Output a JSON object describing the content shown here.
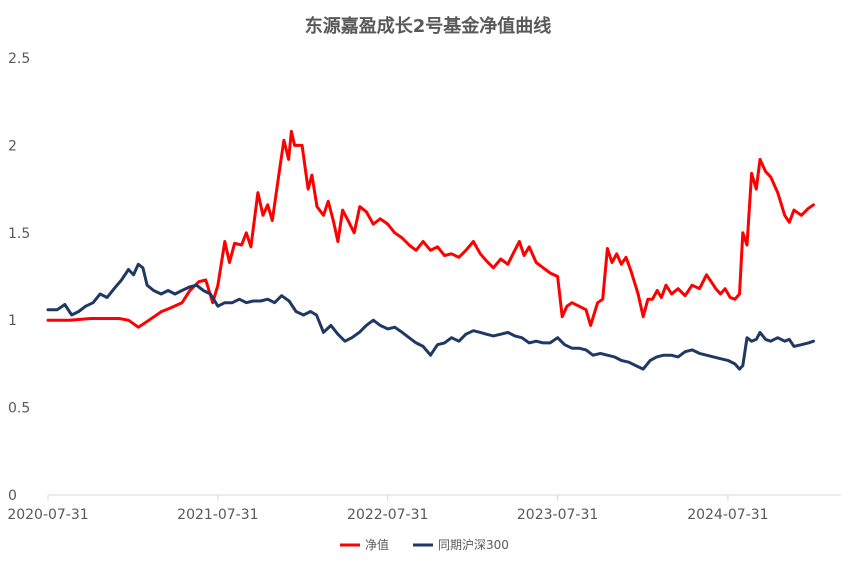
{
  "chart_data": {
    "type": "line",
    "title": "东源嘉盈成长2号基金净值曲线",
    "xlabel": "",
    "ylabel": "",
    "ylim": [
      0,
      2.5
    ],
    "yticks": [
      "0",
      "0.5",
      "1",
      "1.5",
      "2",
      "2.5"
    ],
    "xlim": [
      "2020-07-31",
      "2025-03-31"
    ],
    "xticks": [
      "2020-07-31",
      "2021-07-31",
      "2022-07-31",
      "2023-07-31",
      "2024-07-31"
    ],
    "grid": false,
    "legend_position": "bottom",
    "series": [
      {
        "name": "净值",
        "color": "#ff0000",
        "points": [
          [
            "2020-07-31",
            1.0
          ],
          [
            "2020-09-15",
            1.0
          ],
          [
            "2020-10-31",
            1.01
          ],
          [
            "2020-12-31",
            1.01
          ],
          [
            "2021-01-20",
            1.0
          ],
          [
            "2021-02-10",
            0.96
          ],
          [
            "2021-03-05",
            1.0
          ],
          [
            "2021-04-01",
            1.05
          ],
          [
            "2021-04-20",
            1.07
          ],
          [
            "2021-05-15",
            1.1
          ],
          [
            "2021-06-01",
            1.17
          ],
          [
            "2021-06-20",
            1.22
          ],
          [
            "2021-07-05",
            1.23
          ],
          [
            "2021-07-20",
            1.1
          ],
          [
            "2021-07-31",
            1.2
          ],
          [
            "2021-08-15",
            1.45
          ],
          [
            "2021-08-25",
            1.33
          ],
          [
            "2021-09-05",
            1.44
          ],
          [
            "2021-09-20",
            1.43
          ],
          [
            "2021-09-30",
            1.5
          ],
          [
            "2021-10-10",
            1.42
          ],
          [
            "2021-10-25",
            1.73
          ],
          [
            "2021-11-05",
            1.6
          ],
          [
            "2021-11-15",
            1.66
          ],
          [
            "2021-11-25",
            1.57
          ],
          [
            "2021-12-10",
            1.85
          ],
          [
            "2021-12-20",
            2.03
          ],
          [
            "2021-12-30",
            1.92
          ],
          [
            "2022-01-05",
            2.08
          ],
          [
            "2022-01-12",
            2.0
          ],
          [
            "2022-01-28",
            2.0
          ],
          [
            "2022-02-10",
            1.75
          ],
          [
            "2022-02-18",
            1.83
          ],
          [
            "2022-03-01",
            1.65
          ],
          [
            "2022-03-15",
            1.6
          ],
          [
            "2022-03-25",
            1.68
          ],
          [
            "2022-04-05",
            1.57
          ],
          [
            "2022-04-15",
            1.45
          ],
          [
            "2022-04-25",
            1.63
          ],
          [
            "2022-05-05",
            1.58
          ],
          [
            "2022-05-20",
            1.5
          ],
          [
            "2022-06-01",
            1.65
          ],
          [
            "2022-06-15",
            1.62
          ],
          [
            "2022-06-30",
            1.55
          ],
          [
            "2022-07-15",
            1.58
          ],
          [
            "2022-07-31",
            1.55
          ],
          [
            "2022-08-15",
            1.5
          ],
          [
            "2022-08-31",
            1.47
          ],
          [
            "2022-09-15",
            1.43
          ],
          [
            "2022-09-30",
            1.4
          ],
          [
            "2022-10-15",
            1.45
          ],
          [
            "2022-10-31",
            1.4
          ],
          [
            "2022-11-15",
            1.42
          ],
          [
            "2022-11-30",
            1.37
          ],
          [
            "2022-12-15",
            1.38
          ],
          [
            "2022-12-31",
            1.36
          ],
          [
            "2023-01-15",
            1.4
          ],
          [
            "2023-01-31",
            1.45
          ],
          [
            "2023-02-15",
            1.38
          ],
          [
            "2023-02-28",
            1.34
          ],
          [
            "2023-03-15",
            1.3
          ],
          [
            "2023-03-31",
            1.35
          ],
          [
            "2023-04-15",
            1.32
          ],
          [
            "2023-04-30",
            1.4
          ],
          [
            "2023-05-10",
            1.45
          ],
          [
            "2023-05-20",
            1.37
          ],
          [
            "2023-05-31",
            1.42
          ],
          [
            "2023-06-15",
            1.33
          ],
          [
            "2023-06-30",
            1.3
          ],
          [
            "2023-07-15",
            1.27
          ],
          [
            "2023-07-31",
            1.25
          ],
          [
            "2023-08-10",
            1.02
          ],
          [
            "2023-08-20",
            1.08
          ],
          [
            "2023-08-31",
            1.1
          ],
          [
            "2023-09-15",
            1.08
          ],
          [
            "2023-09-30",
            1.06
          ],
          [
            "2023-10-10",
            0.97
          ],
          [
            "2023-10-25",
            1.1
          ],
          [
            "2023-11-05",
            1.12
          ],
          [
            "2023-11-15",
            1.41
          ],
          [
            "2023-11-25",
            1.33
          ],
          [
            "2023-12-05",
            1.38
          ],
          [
            "2023-12-15",
            1.32
          ],
          [
            "2023-12-25",
            1.36
          ],
          [
            "2024-01-05",
            1.28
          ],
          [
            "2024-01-20",
            1.15
          ],
          [
            "2024-01-31",
            1.02
          ],
          [
            "2024-02-10",
            1.12
          ],
          [
            "2024-02-20",
            1.12
          ],
          [
            "2024-03-01",
            1.17
          ],
          [
            "2024-03-10",
            1.13
          ],
          [
            "2024-03-20",
            1.2
          ],
          [
            "2024-04-01",
            1.15
          ],
          [
            "2024-04-15",
            1.18
          ],
          [
            "2024-04-30",
            1.14
          ],
          [
            "2024-05-15",
            1.2
          ],
          [
            "2024-05-31",
            1.18
          ],
          [
            "2024-06-15",
            1.26
          ],
          [
            "2024-06-25",
            1.22
          ],
          [
            "2024-07-05",
            1.18
          ],
          [
            "2024-07-15",
            1.15
          ],
          [
            "2024-07-25",
            1.18
          ],
          [
            "2024-08-05",
            1.13
          ],
          [
            "2024-08-15",
            1.12
          ],
          [
            "2024-08-25",
            1.15
          ],
          [
            "2024-09-01",
            1.5
          ],
          [
            "2024-09-10",
            1.43
          ],
          [
            "2024-09-20",
            1.84
          ],
          [
            "2024-09-30",
            1.75
          ],
          [
            "2024-10-08",
            1.92
          ],
          [
            "2024-10-20",
            1.85
          ],
          [
            "2024-10-31",
            1.82
          ],
          [
            "2024-11-15",
            1.73
          ],
          [
            "2024-11-30",
            1.6
          ],
          [
            "2024-12-10",
            1.56
          ],
          [
            "2024-12-20",
            1.63
          ],
          [
            "2025-01-05",
            1.6
          ],
          [
            "2025-01-20",
            1.64
          ],
          [
            "2025-01-31",
            1.66
          ]
        ]
      },
      {
        "name": "同期沪深300",
        "color": "#1f3864",
        "points": [
          [
            "2020-07-31",
            1.06
          ],
          [
            "2020-08-20",
            1.06
          ],
          [
            "2020-09-05",
            1.09
          ],
          [
            "2020-09-20",
            1.03
          ],
          [
            "2020-10-05",
            1.05
          ],
          [
            "2020-10-20",
            1.08
          ],
          [
            "2020-11-05",
            1.1
          ],
          [
            "2020-11-20",
            1.15
          ],
          [
            "2020-12-05",
            1.13
          ],
          [
            "2020-12-20",
            1.18
          ],
          [
            "2021-01-05",
            1.23
          ],
          [
            "2021-01-20",
            1.29
          ],
          [
            "2021-01-31",
            1.26
          ],
          [
            "2021-02-10",
            1.32
          ],
          [
            "2021-02-20",
            1.3
          ],
          [
            "2021-03-01",
            1.2
          ],
          [
            "2021-03-15",
            1.17
          ],
          [
            "2021-03-31",
            1.15
          ],
          [
            "2021-04-15",
            1.17
          ],
          [
            "2021-04-30",
            1.15
          ],
          [
            "2021-05-15",
            1.17
          ],
          [
            "2021-05-31",
            1.19
          ],
          [
            "2021-06-15",
            1.2
          ],
          [
            "2021-06-30",
            1.17
          ],
          [
            "2021-07-15",
            1.15
          ],
          [
            "2021-07-31",
            1.08
          ],
          [
            "2021-08-15",
            1.1
          ],
          [
            "2021-08-31",
            1.1
          ],
          [
            "2021-09-15",
            1.12
          ],
          [
            "2021-09-30",
            1.1
          ],
          [
            "2021-10-15",
            1.11
          ],
          [
            "2021-10-31",
            1.11
          ],
          [
            "2021-11-15",
            1.12
          ],
          [
            "2021-11-30",
            1.1
          ],
          [
            "2021-12-15",
            1.14
          ],
          [
            "2021-12-31",
            1.11
          ],
          [
            "2022-01-15",
            1.05
          ],
          [
            "2022-01-31",
            1.03
          ],
          [
            "2022-02-15",
            1.05
          ],
          [
            "2022-02-28",
            1.03
          ],
          [
            "2022-03-15",
            0.93
          ],
          [
            "2022-03-31",
            0.97
          ],
          [
            "2022-04-15",
            0.92
          ],
          [
            "2022-04-30",
            0.88
          ],
          [
            "2022-05-15",
            0.9
          ],
          [
            "2022-05-31",
            0.93
          ],
          [
            "2022-06-15",
            0.97
          ],
          [
            "2022-06-30",
            1.0
          ],
          [
            "2022-07-15",
            0.97
          ],
          [
            "2022-07-31",
            0.95
          ],
          [
            "2022-08-15",
            0.96
          ],
          [
            "2022-08-31",
            0.93
          ],
          [
            "2022-09-15",
            0.9
          ],
          [
            "2022-09-30",
            0.87
          ],
          [
            "2022-10-15",
            0.85
          ],
          [
            "2022-10-31",
            0.8
          ],
          [
            "2022-11-15",
            0.86
          ],
          [
            "2022-11-30",
            0.87
          ],
          [
            "2022-12-15",
            0.9
          ],
          [
            "2022-12-31",
            0.88
          ],
          [
            "2023-01-15",
            0.92
          ],
          [
            "2023-01-31",
            0.94
          ],
          [
            "2023-02-15",
            0.93
          ],
          [
            "2023-02-28",
            0.92
          ],
          [
            "2023-03-15",
            0.91
          ],
          [
            "2023-03-31",
            0.92
          ],
          [
            "2023-04-15",
            0.93
          ],
          [
            "2023-04-30",
            0.91
          ],
          [
            "2023-05-15",
            0.9
          ],
          [
            "2023-05-31",
            0.87
          ],
          [
            "2023-06-15",
            0.88
          ],
          [
            "2023-06-30",
            0.87
          ],
          [
            "2023-07-15",
            0.87
          ],
          [
            "2023-07-31",
            0.9
          ],
          [
            "2023-08-15",
            0.86
          ],
          [
            "2023-08-31",
            0.84
          ],
          [
            "2023-09-15",
            0.84
          ],
          [
            "2023-09-30",
            0.83
          ],
          [
            "2023-10-15",
            0.8
          ],
          [
            "2023-10-31",
            0.81
          ],
          [
            "2023-11-15",
            0.8
          ],
          [
            "2023-11-30",
            0.79
          ],
          [
            "2023-12-15",
            0.77
          ],
          [
            "2023-12-31",
            0.76
          ],
          [
            "2024-01-15",
            0.74
          ],
          [
            "2024-01-31",
            0.72
          ],
          [
            "2024-02-15",
            0.77
          ],
          [
            "2024-02-29",
            0.79
          ],
          [
            "2024-03-15",
            0.8
          ],
          [
            "2024-03-31",
            0.8
          ],
          [
            "2024-04-15",
            0.79
          ],
          [
            "2024-04-30",
            0.82
          ],
          [
            "2024-05-15",
            0.83
          ],
          [
            "2024-05-31",
            0.81
          ],
          [
            "2024-06-15",
            0.8
          ],
          [
            "2024-06-30",
            0.79
          ],
          [
            "2024-07-15",
            0.78
          ],
          [
            "2024-07-31",
            0.77
          ],
          [
            "2024-08-15",
            0.75
          ],
          [
            "2024-08-25",
            0.72
          ],
          [
            "2024-09-01",
            0.74
          ],
          [
            "2024-09-10",
            0.9
          ],
          [
            "2024-09-20",
            0.88
          ],
          [
            "2024-09-30",
            0.89
          ],
          [
            "2024-10-08",
            0.93
          ],
          [
            "2024-10-20",
            0.89
          ],
          [
            "2024-10-31",
            0.88
          ],
          [
            "2024-11-15",
            0.9
          ],
          [
            "2024-11-30",
            0.88
          ],
          [
            "2024-12-10",
            0.89
          ],
          [
            "2024-12-20",
            0.85
          ],
          [
            "2025-01-05",
            0.86
          ],
          [
            "2025-01-20",
            0.87
          ],
          [
            "2025-01-31",
            0.88
          ]
        ]
      }
    ]
  }
}
